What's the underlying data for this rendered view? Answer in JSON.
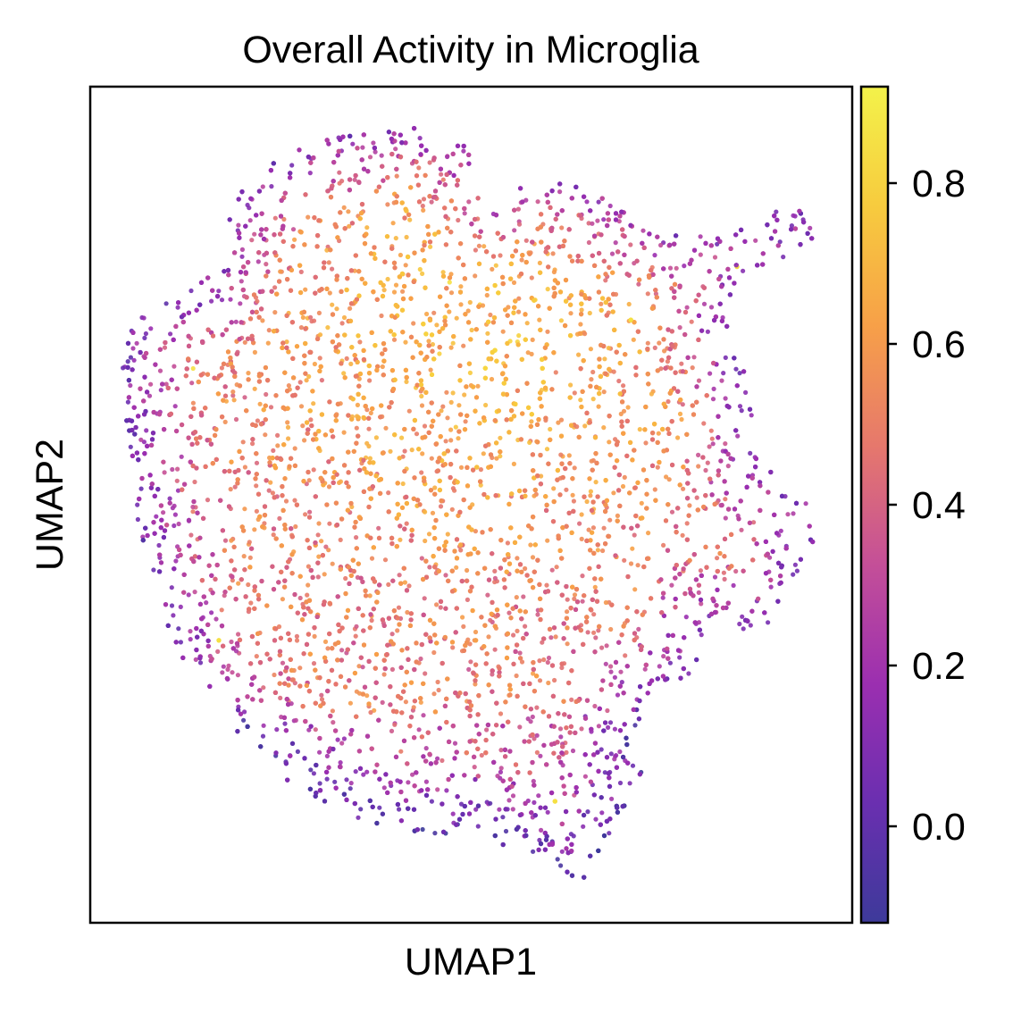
{
  "chart_data": {
    "type": "scatter",
    "title": "Overall Activity in Microglia",
    "xlabel": "UMAP1",
    "ylabel": "UMAP2",
    "grid": false,
    "show_axis_ticks": false,
    "colorbar": {
      "colormap": "plasma",
      "range": [
        -0.12,
        0.92
      ],
      "ticks": [
        0.0,
        0.2,
        0.4,
        0.6,
        0.8
      ],
      "tick_labels": [
        "0.0",
        "0.2",
        "0.4",
        "0.6",
        "0.8"
      ],
      "placement": "right"
    },
    "colormap_stops": [
      "#3d3a9a",
      "#6a2fb0",
      "#9b2fb0",
      "#c44f98",
      "#e6786c",
      "#f7a048",
      "#f7cb3e",
      "#f3f24a"
    ],
    "series": []
  }
}
